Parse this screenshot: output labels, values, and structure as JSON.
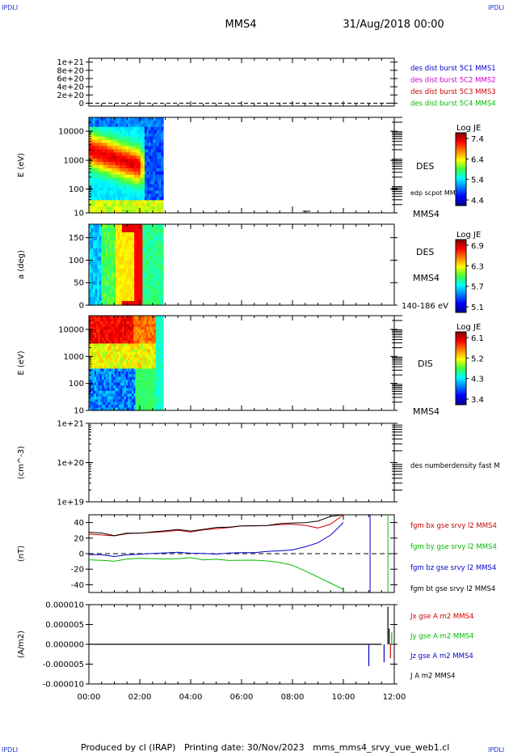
{
  "header": {
    "corner_left": "IPDLI",
    "corner_right": "IPDLI",
    "spacecraft": "MMS4",
    "date_time": "31/Aug/2018 00:00"
  },
  "footer": {
    "corner_left": "IPDLI",
    "corner_right": "IPDLI",
    "text": "Produced by cl (IRAP)   Printing date: 30/Nov/2023   mms_mms4_srvy_vue_web1.cl"
  },
  "colors": {
    "mms1": "#0000cc",
    "mms2": "#cc00cc",
    "mms3": "#cc0000",
    "mms4": "#00bb00",
    "bx": "#cc0000",
    "by": "#00bb00",
    "bz": "#0000cc",
    "bt": "#000000"
  },
  "chart_data": [
    {
      "id": "panel1",
      "type": "line",
      "ytick_labels": [
        "1e+21",
        "8e+20",
        "6e+20",
        "4e+20",
        "2e+20",
        "0"
      ],
      "ylim": [
        0,
        1e+21
      ],
      "zero_line": "dashed",
      "legend": [
        {
          "label": "des dist burst 5C1 MMS1",
          "color": "#0000cc"
        },
        {
          "label": "des dist burst 5C2 MMS2",
          "color": "#cc00cc"
        },
        {
          "label": "des dist burst 5C3 MMS3",
          "color": "#cc0000"
        },
        {
          "label": "des dist burst 5C4 MMS4",
          "color": "#00bb00"
        }
      ]
    },
    {
      "id": "panel2",
      "type": "heatmap",
      "ylabel": "E (eV)",
      "ytick_labels": [
        "10000",
        "1000",
        "100",
        "10"
      ],
      "yscale": "log",
      "ylim": [
        10,
        30000
      ],
      "data_x_range": [
        "00:00",
        "02:55"
      ],
      "right_labels": [
        "DES",
        "edp scpot MMS4",
        "MMS4"
      ],
      "colorbar": {
        "title": "Log JE",
        "ticks": [
          "7.4",
          "6.4",
          "5.4",
          "4.4"
        ],
        "range": [
          4.4,
          7.4
        ]
      }
    },
    {
      "id": "panel3",
      "type": "heatmap",
      "ylabel": "a (deg)",
      "ytick_labels": [
        "150",
        "100",
        "50",
        "0"
      ],
      "ylim": [
        0,
        180
      ],
      "data_x_range": [
        "00:00",
        "02:55"
      ],
      "right_labels": [
        "DES",
        "MMS4",
        "140-186 eV"
      ],
      "colorbar": {
        "title": "Log JE",
        "ticks": [
          "6.9",
          "6.3",
          "5.7",
          "5.1"
        ],
        "range": [
          5.1,
          6.9
        ]
      }
    },
    {
      "id": "panel4",
      "type": "heatmap",
      "ylabel": "E (eV)",
      "ytick_labels": [
        "10000",
        "1000",
        "100",
        "10"
      ],
      "yscale": "log",
      "ylim": [
        10,
        30000
      ],
      "data_x_range": [
        "00:00",
        "02:55"
      ],
      "right_labels": [
        "DIS",
        "MMS4"
      ],
      "colorbar": {
        "title": "Log JE",
        "ticks": [
          "6.1",
          "5.2",
          "4.3",
          "3.4"
        ],
        "range": [
          3.4,
          6.1
        ]
      }
    },
    {
      "id": "panel5",
      "type": "line",
      "ylabel": "(cm^-3)",
      "ytick_labels": [
        "1e+21",
        "1e+20",
        "1e+19"
      ],
      "yscale": "log",
      "ylim": [
        1e+19,
        1e+21
      ],
      "right_labels": [
        "des numberdensity fast M"
      ]
    },
    {
      "id": "panel6",
      "type": "line",
      "ylabel": "(nT)",
      "ytick_labels": [
        "40",
        "20",
        "0",
        "-20",
        "-40"
      ],
      "ylim": [
        -50,
        50
      ],
      "zero_line": "dashed",
      "x_hours": [
        0,
        0.5,
        1,
        1.5,
        2,
        2.5,
        3,
        3.5,
        4,
        4.5,
        5,
        5.5,
        6,
        6.5,
        7,
        7.5,
        8,
        8.5,
        9,
        9.5,
        10
      ],
      "series": [
        {
          "name": "fgm bx gse srvy l2 MMS4",
          "color": "#cc0000",
          "values": [
            26,
            25,
            22,
            25,
            26,
            27,
            29,
            30,
            28,
            31,
            32,
            33,
            35,
            36,
            37,
            38,
            38,
            36,
            33,
            38,
            50
          ]
        },
        {
          "name": "fgm by gse srvy l2 MMS4",
          "color": "#00bb00",
          "values": [
            -8,
            -8,
            -9,
            -7,
            -7,
            -7,
            -7,
            -6,
            -6,
            -7,
            -7,
            -8,
            -8,
            -9,
            -10,
            -12,
            -16,
            -22,
            -30,
            -38,
            -46
          ]
        },
        {
          "name": "fgm bz gse srvy l2 MMS4",
          "color": "#0000cc",
          "values": [
            -2,
            -1,
            -3,
            -1,
            0,
            0,
            0,
            1,
            1,
            0,
            0,
            1,
            1,
            2,
            3,
            4,
            5,
            8,
            14,
            24,
            40
          ]
        },
        {
          "name": "fgm bt gse srvy l2 MMS4",
          "color": "#000000",
          "values": [
            28,
            27,
            24,
            26,
            27,
            28,
            30,
            31,
            29,
            32,
            33,
            34,
            35,
            36,
            37,
            38,
            39,
            40,
            42,
            48,
            60
          ]
        }
      ]
    },
    {
      "id": "panel7",
      "type": "line",
      "ylabel": "(A/m2)",
      "ytick_labels": [
        "0.000010",
        "0.000005",
        "0.000000",
        "-0.000005",
        "-0.000010"
      ],
      "ylim": [
        -1e-05,
        1e-05
      ],
      "right_labels": [
        {
          "label": "Jx gse A m2 MMS4",
          "color": "#cc0000"
        },
        {
          "label": "Jy gse A m2 MMS4",
          "color": "#00bb00"
        },
        {
          "label": "Jz gse A m2 MMS4",
          "color": "#0000cc"
        },
        {
          "label": "J A m2 MMS4",
          "color": "#000000"
        }
      ]
    }
  ],
  "xaxis": {
    "tick_labels": [
      "00:00",
      "02:00",
      "04:00",
      "06:00",
      "08:00",
      "10:00",
      "12:00"
    ],
    "range_hours": [
      0,
      12
    ]
  }
}
